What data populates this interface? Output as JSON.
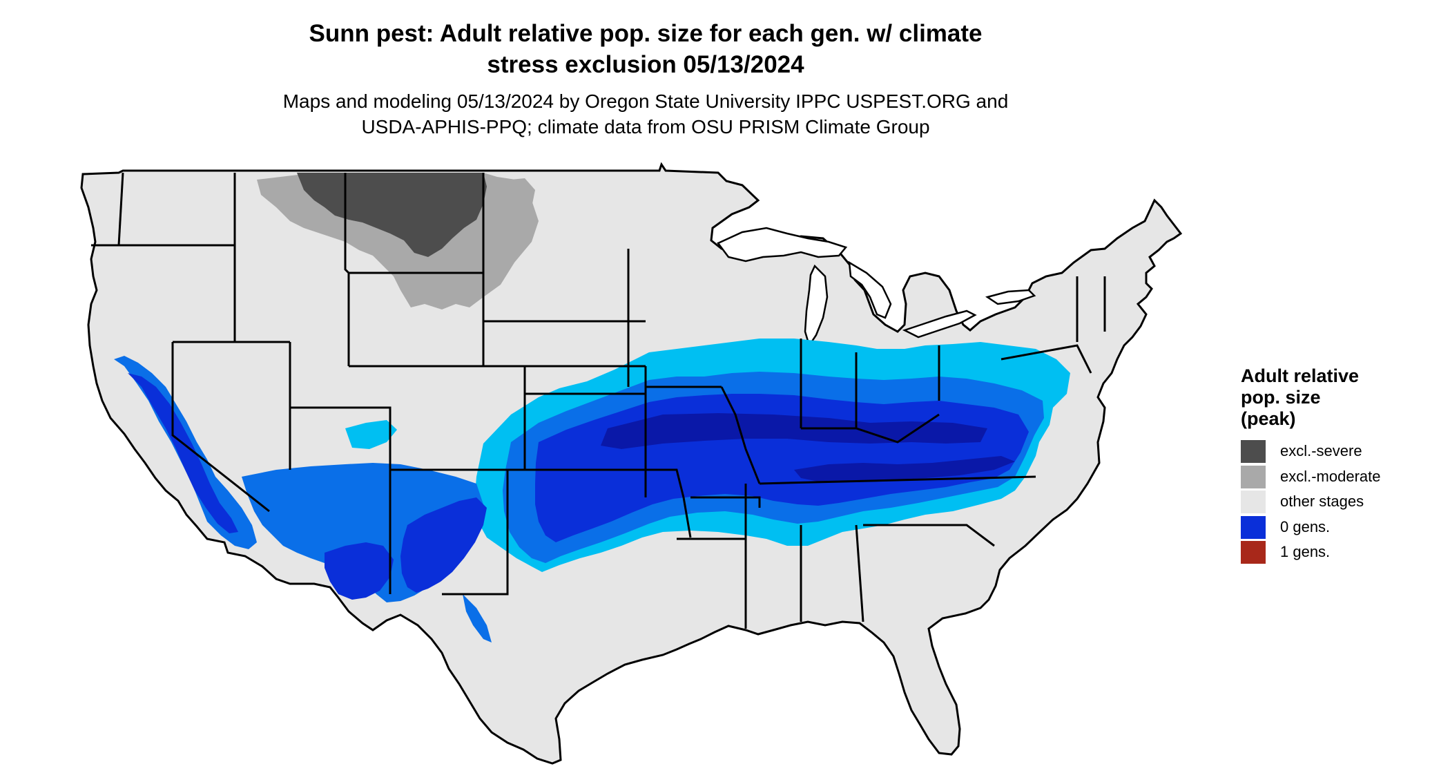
{
  "title_line1": "Sunn pest: Adult relative pop. size for each gen. w/ climate",
  "title_line2": "stress exclusion 05/13/2024",
  "subtitle_line1": "Maps and modeling 05/13/2024 by Oregon State University IPPC USPEST.ORG and",
  "subtitle_line2": "USDA-APHIS-PPQ; climate data from OSU PRISM Climate Group",
  "legend": {
    "title_line1": "Adult relative",
    "title_line2": "pop. size",
    "title_line3": "(peak)",
    "items": [
      {
        "label": "excl.-severe",
        "color": "#4d4d4d"
      },
      {
        "label": "excl.-moderate",
        "color": "#a9a9a9"
      },
      {
        "label": "other stages",
        "color": "#e6e6e6"
      },
      {
        "label": "0 gens.",
        "color": "#0a2fd9"
      },
      {
        "label": "1 gens.",
        "color": "#a8281a"
      }
    ]
  },
  "map_colors": {
    "background_land": "#e6e6e6",
    "excl_severe": "#4d4d4d",
    "excl_moderate": "#a9a9a9",
    "light_blue": "#00bff2",
    "medium_blue": "#0a6fe8",
    "dark_blue": "#0a2fd9",
    "navy": "#0a18a8",
    "state_border": "#000000"
  }
}
